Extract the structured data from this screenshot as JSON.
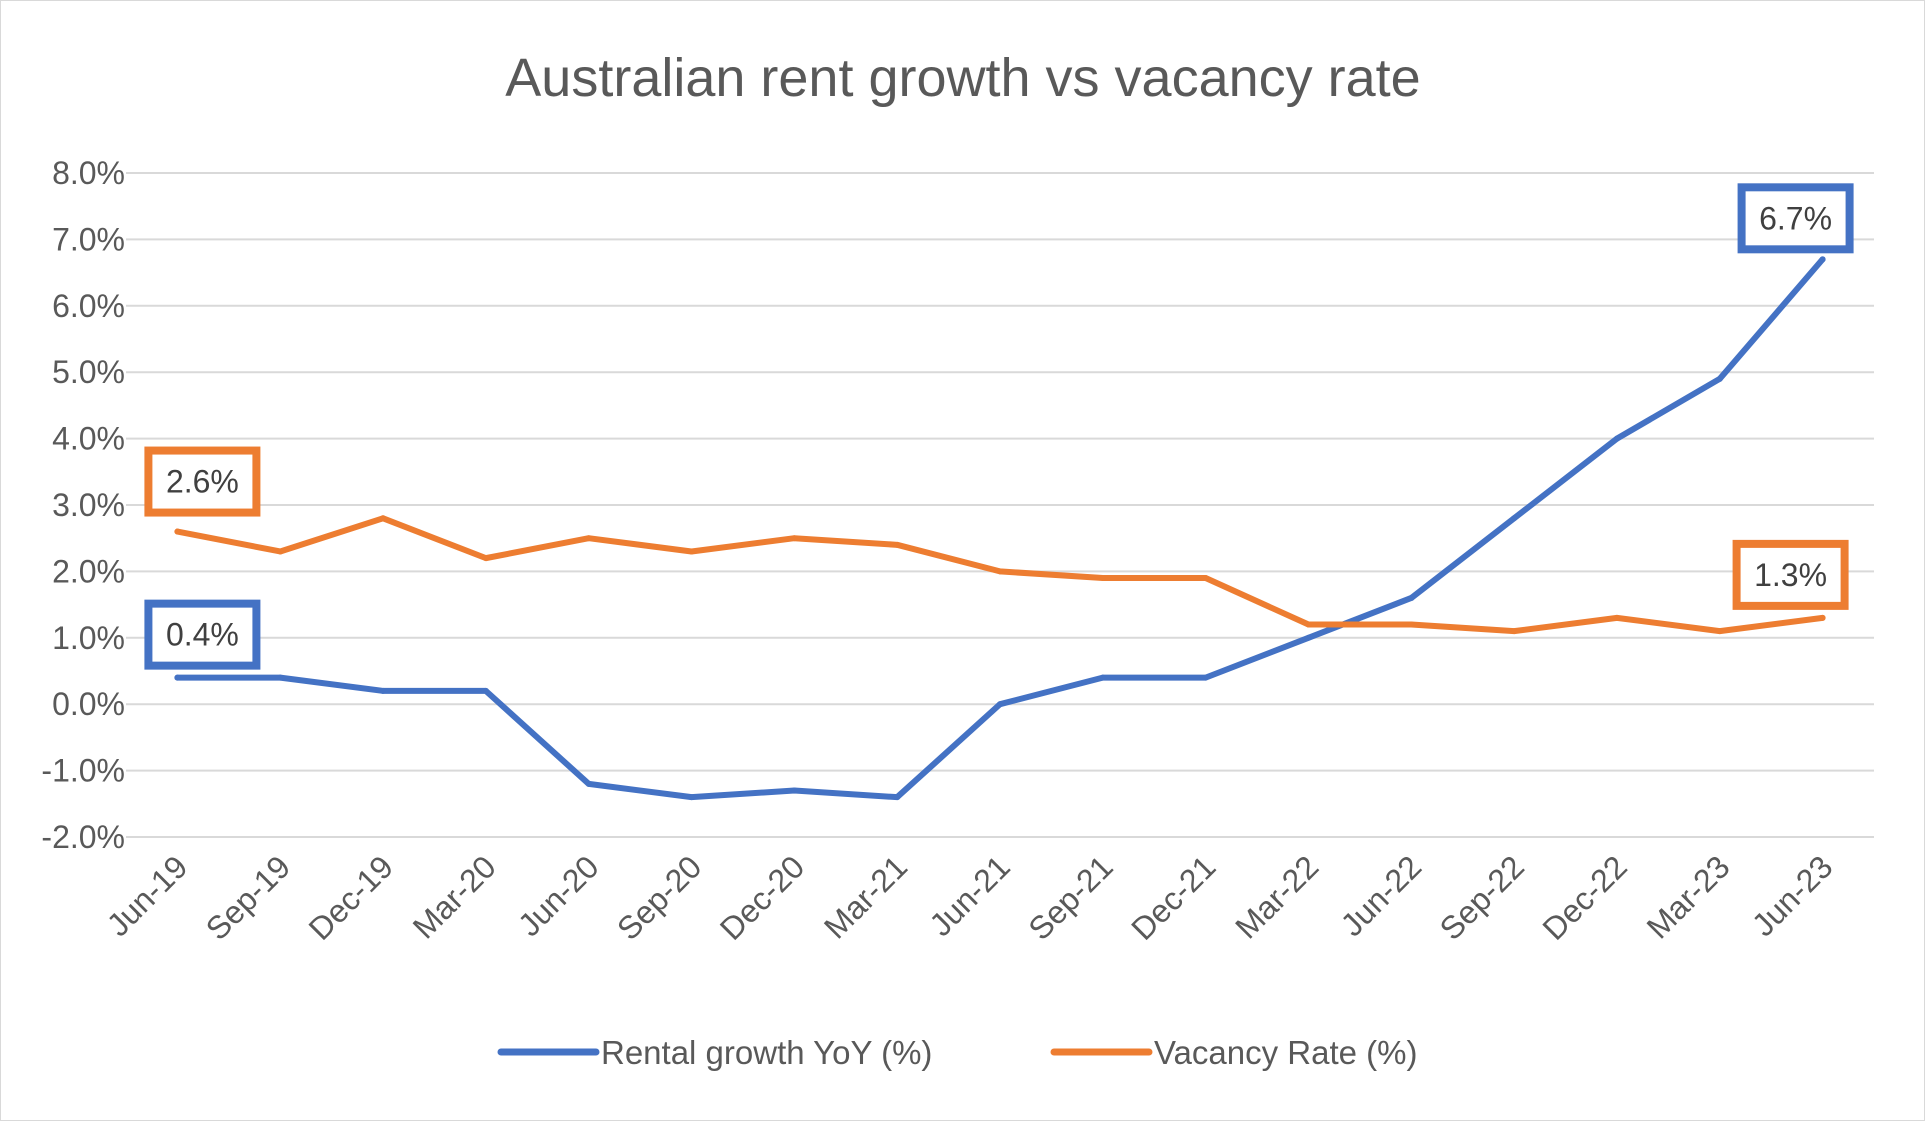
{
  "chart_data": {
    "type": "line",
    "title": "Australian rent growth vs vacancy rate",
    "xlabel": "",
    "ylabel": "",
    "ylim": [
      -2.0,
      8.0
    ],
    "y_ticks": [
      "-2.0%",
      "-1.0%",
      "0.0%",
      "1.0%",
      "2.0%",
      "3.0%",
      "4.0%",
      "5.0%",
      "6.0%",
      "7.0%",
      "8.0%"
    ],
    "grid": true,
    "legend_position": "bottom",
    "categories": [
      "Jun-19",
      "Sep-19",
      "Dec-19",
      "Mar-20",
      "Jun-20",
      "Sep-20",
      "Dec-20",
      "Mar-21",
      "Jun-21",
      "Sep-21",
      "Dec-21",
      "Mar-22",
      "Jun-22",
      "Sep-22",
      "Dec-22",
      "Mar-23",
      "Jun-23"
    ],
    "series": [
      {
        "name": "Rental growth YoY (%)",
        "color": "#4472c4",
        "values": [
          0.4,
          0.4,
          0.2,
          0.2,
          -1.2,
          -1.4,
          -1.3,
          -1.4,
          0.0,
          0.4,
          0.4,
          1.0,
          1.6,
          2.8,
          4.0,
          4.9,
          6.7
        ],
        "annotations": [
          {
            "index": 0,
            "text": "0.4%"
          },
          {
            "index": 16,
            "text": "6.7%"
          }
        ]
      },
      {
        "name": "Vacancy Rate (%)",
        "color": "#ed7d31",
        "values": [
          2.6,
          2.3,
          2.8,
          2.2,
          2.5,
          2.3,
          2.5,
          2.4,
          2.0,
          1.9,
          1.9,
          1.2,
          1.2,
          1.1,
          1.3,
          1.1,
          1.3
        ],
        "annotations": [
          {
            "index": 0,
            "text": "2.6%"
          },
          {
            "index": 16,
            "text": "1.3%"
          }
        ]
      }
    ]
  }
}
